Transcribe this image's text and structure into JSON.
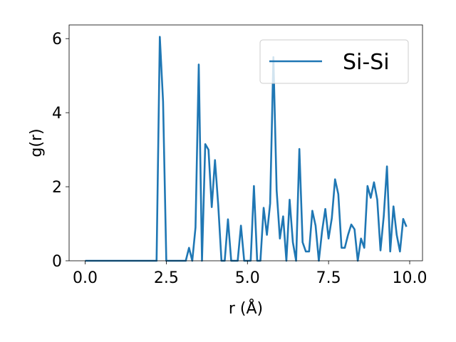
{
  "chart_data": {
    "type": "line",
    "xlabel": "r (Å)",
    "ylabel": "g(r)",
    "xlim": [
      -0.495,
      10.395
    ],
    "ylim": [
      0,
      6.37
    ],
    "x_ticks": [
      0.0,
      2.5,
      5.0,
      7.5,
      10.0
    ],
    "x_tick_labels": [
      "0.0",
      "2.5",
      "5.0",
      "7.5",
      "10.0"
    ],
    "y_ticks": [
      0,
      2,
      4,
      6
    ],
    "y_tick_labels": [
      "0",
      "2",
      "4",
      "6"
    ],
    "grid": false,
    "legend_position": "top-right",
    "line_color": "#1f77b4",
    "series": [
      {
        "name": "Si-Si",
        "x": [
          0,
          0.1,
          0.2,
          0.3,
          0.4,
          0.5,
          0.6,
          0.7,
          0.8,
          0.9,
          1.0,
          1.1,
          1.2,
          1.3,
          1.4,
          1.5,
          1.6,
          1.7,
          1.8,
          1.9,
          2.0,
          2.1,
          2.2,
          2.3,
          2.4,
          2.5,
          2.6,
          2.7,
          2.8,
          2.9,
          3.0,
          3.1,
          3.2,
          3.3,
          3.4,
          3.5,
          3.6,
          3.7,
          3.8,
          3.9,
          4.0,
          4.1,
          4.2,
          4.3,
          4.4,
          4.5,
          4.6,
          4.7,
          4.8,
          4.9,
          5.0,
          5.1,
          5.2,
          5.3,
          5.4,
          5.5,
          5.6,
          5.7,
          5.8,
          5.9,
          6.0,
          6.1,
          6.2,
          6.3,
          6.4,
          6.5,
          6.6,
          6.7,
          6.8,
          6.9,
          7.0,
          7.1,
          7.2,
          7.3,
          7.4,
          7.5,
          7.6,
          7.7,
          7.8,
          7.9,
          8.0,
          8.1,
          8.2,
          8.3,
          8.4,
          8.5,
          8.6,
          8.7,
          8.8,
          8.9,
          9.0,
          9.1,
          9.2,
          9.3,
          9.4,
          9.5,
          9.6,
          9.7,
          9.8,
          9.9
        ],
        "values": [
          0,
          0,
          0,
          0,
          0,
          0,
          0,
          0,
          0,
          0,
          0,
          0,
          0,
          0,
          0,
          0,
          0,
          0,
          0,
          0,
          0,
          0,
          0,
          6.05,
          4.3,
          0,
          0,
          0,
          0,
          0,
          0,
          0,
          0.35,
          0,
          0.9,
          5.3,
          0,
          3.15,
          3.0,
          1.45,
          2.72,
          1.5,
          0,
          0,
          1.12,
          0,
          0,
          0,
          0.95,
          0,
          0,
          0,
          2.02,
          0,
          0,
          1.43,
          0.7,
          1.55,
          5.5,
          1.9,
          0.6,
          1.2,
          0,
          1.65,
          0.5,
          0,
          3.02,
          0.5,
          0.25,
          0.25,
          1.35,
          0.95,
          0,
          0.8,
          1.4,
          0.6,
          1.15,
          2.2,
          1.8,
          0.35,
          0.35,
          0.7,
          0.98,
          0.85,
          0,
          0.6,
          0.35,
          2.02,
          1.7,
          2.12,
          1.65,
          0.28,
          1.2,
          2.55,
          0.25,
          1.47,
          0.7,
          0.25,
          1.13,
          0.92
        ]
      }
    ]
  }
}
